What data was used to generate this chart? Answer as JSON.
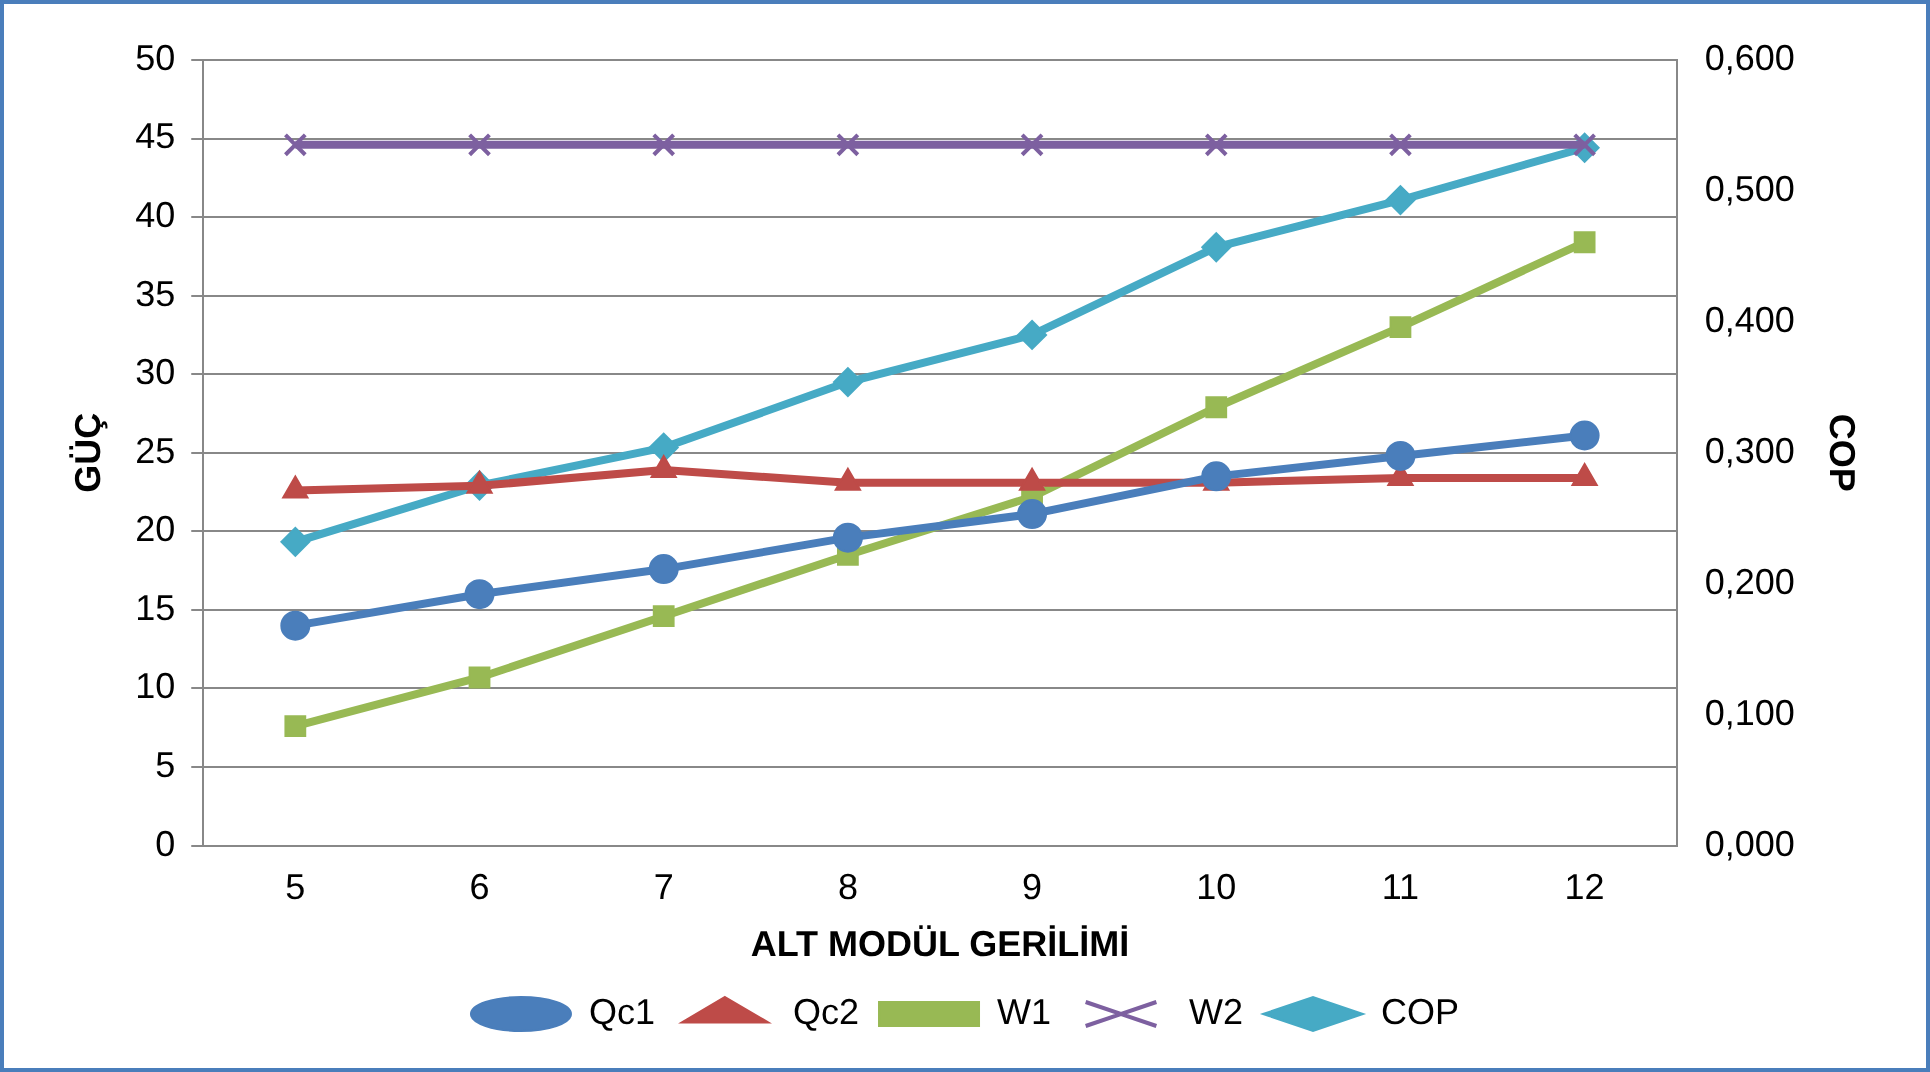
{
  "chart_data": {
    "type": "line",
    "xlabel": "ALT MODÜL GERİLİMİ",
    "ylabel": "GÜÇ",
    "y2label": "COP",
    "categories": [
      "5",
      "6",
      "7",
      "8",
      "9",
      "10",
      "11",
      "12"
    ],
    "series": [
      {
        "name": "Qc1",
        "color": "#4a7ebb",
        "marker": "circle",
        "values": [
          14.0,
          16.0,
          17.6,
          19.6,
          21.1,
          23.5,
          24.8,
          26.1
        ]
      },
      {
        "name": "Qc2",
        "color": "#be4b48",
        "marker": "triangle",
        "values": [
          22.6,
          22.9,
          23.9,
          23.1,
          23.1,
          23.1,
          23.4,
          23.4
        ]
      },
      {
        "name": "W1",
        "color": "#98b954",
        "marker": "square",
        "values": [
          7.6,
          10.7,
          14.6,
          18.5,
          22.2,
          27.9,
          33.0,
          38.4
        ]
      },
      {
        "name": "W2",
        "color": "#7d60a0",
        "marker": "cross",
        "values": [
          44.6,
          44.6,
          44.6,
          44.6,
          44.6,
          44.6,
          44.6,
          44.6
        ]
      },
      {
        "name": "COP",
        "color": "#46aac5",
        "marker": "diamond",
        "axis": "y2",
        "values": [
          0.232,
          0.275,
          0.304,
          0.354,
          0.39,
          0.457,
          0.493,
          0.533
        ]
      }
    ],
    "ylim": [
      0,
      50
    ],
    "yticks": [
      0,
      5,
      10,
      15,
      20,
      25,
      30,
      35,
      40,
      45,
      50
    ],
    "y2lim": [
      0,
      0.6
    ],
    "y2ticks": [
      {
        "value": 0,
        "label": "0,000"
      },
      {
        "value": 0.1,
        "label": "0,100"
      },
      {
        "value": 0.2,
        "label": "0,200"
      },
      {
        "value": 0.3,
        "label": "0,300"
      },
      {
        "value": 0.4,
        "label": "0,400"
      },
      {
        "value": 0.5,
        "label": "0,500"
      },
      {
        "value": 0.6,
        "label": "0,600"
      }
    ],
    "grid": "y",
    "legend": "bottom",
    "line_style": "solid"
  }
}
